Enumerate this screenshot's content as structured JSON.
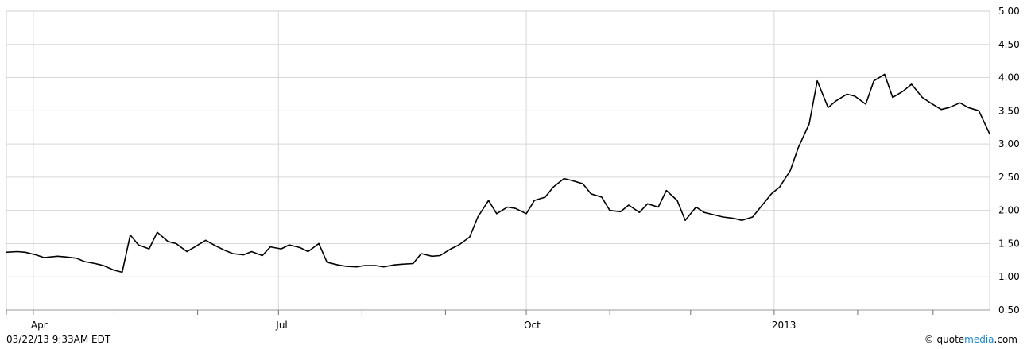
{
  "chart_data": {
    "type": "line",
    "title": "",
    "xlabel": "",
    "ylabel": "",
    "ylim": [
      0.5,
      5.0
    ],
    "y_axis_position": "right",
    "grid": true,
    "line_color": "#000000",
    "yticks": [
      "0.50",
      "1.00",
      "1.50",
      "2.00",
      "2.50",
      "3.00",
      "3.50",
      "4.00",
      "4.50",
      "5.00"
    ],
    "xtick_labels": [
      {
        "label": "Apr",
        "date": "2012-04-01"
      },
      {
        "label": "Jul",
        "date": "2012-07-01"
      },
      {
        "label": "Oct",
        "date": "2012-10-01"
      },
      {
        "label": "2013",
        "date": "2013-01-01"
      }
    ],
    "minor_tick_dates": [
      "2012-03-22",
      "2012-04-01",
      "2012-05-01",
      "2012-06-01",
      "2012-07-01",
      "2012-08-01",
      "2012-09-01",
      "2012-10-01",
      "2012-11-01",
      "2012-12-01",
      "2013-01-01",
      "2013-02-01",
      "2013-03-01"
    ],
    "x_start": "2012-03-22",
    "x_end": "2013-03-22",
    "series": [
      {
        "points": [
          [
            "2012-03-22",
            1.37
          ],
          [
            "2012-03-26",
            1.38
          ],
          [
            "2012-03-29",
            1.37
          ],
          [
            "2012-04-02",
            1.33
          ],
          [
            "2012-04-05",
            1.29
          ],
          [
            "2012-04-10",
            1.31
          ],
          [
            "2012-04-13",
            1.3
          ],
          [
            "2012-04-17",
            1.28
          ],
          [
            "2012-04-20",
            1.23
          ],
          [
            "2012-04-24",
            1.2
          ],
          [
            "2012-04-27",
            1.17
          ],
          [
            "2012-05-01",
            1.1
          ],
          [
            "2012-05-04",
            1.07
          ],
          [
            "2012-05-07",
            1.63
          ],
          [
            "2012-05-10",
            1.48
          ],
          [
            "2012-05-14",
            1.42
          ],
          [
            "2012-05-17",
            1.67
          ],
          [
            "2012-05-21",
            1.53
          ],
          [
            "2012-05-24",
            1.5
          ],
          [
            "2012-05-28",
            1.38
          ],
          [
            "2012-05-31",
            1.45
          ],
          [
            "2012-06-04",
            1.55
          ],
          [
            "2012-06-07",
            1.48
          ],
          [
            "2012-06-11",
            1.4
          ],
          [
            "2012-06-14",
            1.35
          ],
          [
            "2012-06-18",
            1.33
          ],
          [
            "2012-06-21",
            1.38
          ],
          [
            "2012-06-25",
            1.32
          ],
          [
            "2012-06-28",
            1.45
          ],
          [
            "2012-07-02",
            1.42
          ],
          [
            "2012-07-05",
            1.48
          ],
          [
            "2012-07-09",
            1.44
          ],
          [
            "2012-07-12",
            1.38
          ],
          [
            "2012-07-16",
            1.5
          ],
          [
            "2012-07-19",
            1.22
          ],
          [
            "2012-07-23",
            1.18
          ],
          [
            "2012-07-26",
            1.16
          ],
          [
            "2012-07-30",
            1.15
          ],
          [
            "2012-08-02",
            1.17
          ],
          [
            "2012-08-06",
            1.17
          ],
          [
            "2012-08-09",
            1.15
          ],
          [
            "2012-08-13",
            1.18
          ],
          [
            "2012-08-16",
            1.19
          ],
          [
            "2012-08-20",
            1.2
          ],
          [
            "2012-08-23",
            1.35
          ],
          [
            "2012-08-27",
            1.31
          ],
          [
            "2012-08-30",
            1.32
          ],
          [
            "2012-09-03",
            1.42
          ],
          [
            "2012-09-06",
            1.48
          ],
          [
            "2012-09-10",
            1.6
          ],
          [
            "2012-09-13",
            1.9
          ],
          [
            "2012-09-17",
            2.15
          ],
          [
            "2012-09-20",
            1.95
          ],
          [
            "2012-09-24",
            2.05
          ],
          [
            "2012-09-27",
            2.03
          ],
          [
            "2012-10-01",
            1.95
          ],
          [
            "2012-10-04",
            2.15
          ],
          [
            "2012-10-08",
            2.2
          ],
          [
            "2012-10-11",
            2.35
          ],
          [
            "2012-10-15",
            2.48
          ],
          [
            "2012-10-18",
            2.45
          ],
          [
            "2012-10-22",
            2.4
          ],
          [
            "2012-10-25",
            2.25
          ],
          [
            "2012-10-29",
            2.2
          ],
          [
            "2012-11-01",
            2.0
          ],
          [
            "2012-11-05",
            1.98
          ],
          [
            "2012-11-08",
            2.08
          ],
          [
            "2012-11-12",
            1.97
          ],
          [
            "2012-11-15",
            2.1
          ],
          [
            "2012-11-19",
            2.05
          ],
          [
            "2012-11-22",
            2.3
          ],
          [
            "2012-11-26",
            2.15
          ],
          [
            "2012-11-29",
            1.85
          ],
          [
            "2012-12-03",
            2.05
          ],
          [
            "2012-12-06",
            1.97
          ],
          [
            "2012-12-10",
            1.93
          ],
          [
            "2012-12-13",
            1.9
          ],
          [
            "2012-12-17",
            1.88
          ],
          [
            "2012-12-20",
            1.85
          ],
          [
            "2012-12-24",
            1.9
          ],
          [
            "2012-12-27",
            2.05
          ],
          [
            "2012-12-31",
            2.25
          ],
          [
            "2013-01-03",
            2.35
          ],
          [
            "2013-01-07",
            2.6
          ],
          [
            "2013-01-10",
            2.95
          ],
          [
            "2013-01-14",
            3.3
          ],
          [
            "2013-01-17",
            3.95
          ],
          [
            "2013-01-21",
            3.55
          ],
          [
            "2013-01-24",
            3.65
          ],
          [
            "2013-01-28",
            3.75
          ],
          [
            "2013-01-31",
            3.72
          ],
          [
            "2013-02-04",
            3.6
          ],
          [
            "2013-02-07",
            3.95
          ],
          [
            "2013-02-11",
            4.05
          ],
          [
            "2013-02-14",
            3.7
          ],
          [
            "2013-02-18",
            3.8
          ],
          [
            "2013-02-21",
            3.9
          ],
          [
            "2013-02-25",
            3.7
          ],
          [
            "2013-02-28",
            3.62
          ],
          [
            "2013-03-04",
            3.52
          ],
          [
            "2013-03-07",
            3.55
          ],
          [
            "2013-03-11",
            3.62
          ],
          [
            "2013-03-14",
            3.55
          ],
          [
            "2013-03-18",
            3.5
          ],
          [
            "2013-03-22",
            3.15
          ]
        ]
      }
    ],
    "footer": {
      "timestamp": "03/22/13 9:33AM EDT",
      "attribution_prefix": "© quote",
      "attribution_accent": "media",
      "attribution_suffix": ".com",
      "accent_color": "#1a86d0"
    }
  }
}
